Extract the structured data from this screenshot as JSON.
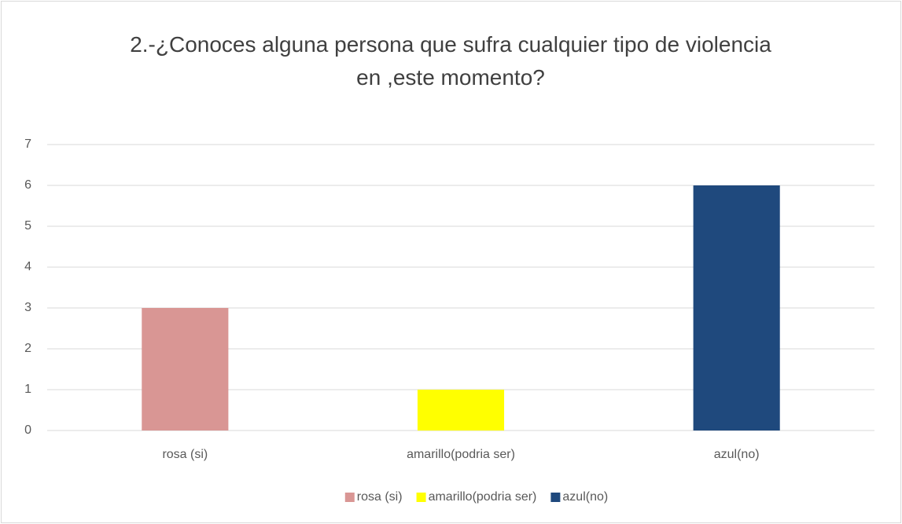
{
  "chart_data": {
    "type": "bar",
    "title": "2.-¿Conoces alguna persona que sufra cualquier tipo de violencia en ,este momento?",
    "categories": [
      "rosa (si)",
      "amarillo(podria ser)",
      "azul(no)"
    ],
    "values": [
      3,
      1,
      6
    ],
    "colors": [
      "#d99694",
      "#ffff00",
      "#1f497d"
    ],
    "ylim": [
      0,
      7
    ],
    "yticks": [
      0,
      1,
      2,
      3,
      4,
      5,
      6,
      7
    ],
    "grid": true,
    "legend": "bottom"
  }
}
